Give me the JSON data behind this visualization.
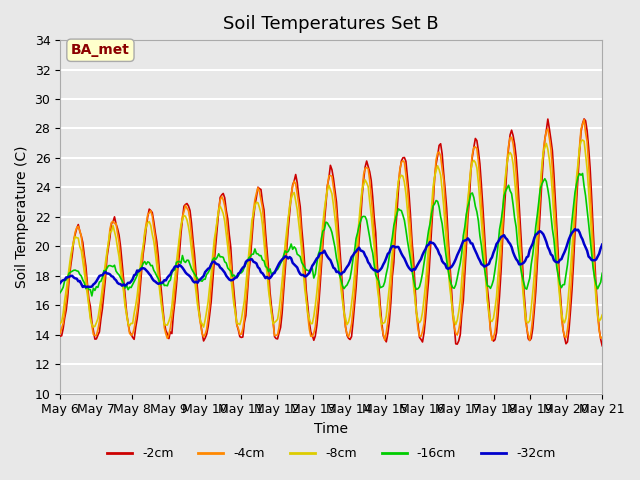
{
  "title": "Soil Temperatures Set B",
  "xlabel": "Time",
  "ylabel": "Soil Temperature (C)",
  "ylim": [
    10,
    34
  ],
  "annotation": "BA_met",
  "background_color": "#e8e8e8",
  "line_colors": {
    "-2cm": "#cc0000",
    "-4cm": "#ff8800",
    "-8cm": "#ddcc00",
    "-16cm": "#00cc00",
    "-32cm": "#0000cc"
  },
  "x_tick_labels": [
    "May 6",
    "May 7",
    "May 8",
    "May 9",
    "May 10",
    "May 11",
    "May 12",
    "May 13",
    "May 14",
    "May 15",
    "May 16",
    "May 17",
    "May 18",
    "May 19",
    "May 20",
    "May 21"
  ],
  "grid_color": "#ffffff",
  "title_fontsize": 13,
  "axis_fontsize": 10,
  "tick_fontsize": 9,
  "legend_fontsize": 9,
  "annotation_fontsize": 10
}
